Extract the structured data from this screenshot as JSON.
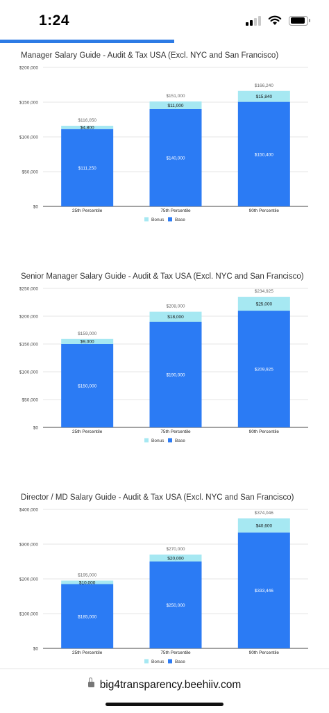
{
  "status": {
    "time": "1:24"
  },
  "reading_progress": 0.53,
  "browser": {
    "url": "big4transparency.beehiiv.com"
  },
  "colors": {
    "bonus": "#a6e8f2",
    "base": "#2b7bf4",
    "grid": "#dddddd",
    "axis": "#444444",
    "progress": "#2d7be5"
  },
  "chart_data": [
    {
      "type": "bar",
      "stacked": true,
      "title": "Manager Salary Guide - Audit & Tax USA (Excl. NYC and San Francisco)",
      "categories": [
        "25th Percentile",
        "75th Percentile",
        "90th Percentile"
      ],
      "series": [
        {
          "name": "Base",
          "values": [
            111250,
            140000,
            150400
          ],
          "labels": [
            "$111,250",
            "$140,000",
            "$150,400"
          ]
        },
        {
          "name": "Bonus",
          "values": [
            4800,
            11000,
            15840
          ],
          "labels": [
            "$4,800",
            "$11,000",
            "$15,840"
          ]
        }
      ],
      "totals": [
        "$116,050",
        "$151,000",
        "$166,240"
      ],
      "ylim": [
        0,
        200000
      ],
      "yticks": [
        "$0",
        "$50,000",
        "$100,000",
        "$150,000",
        "$200,000"
      ],
      "legend": [
        "Bonus",
        "Base"
      ],
      "legend_position": "bottom",
      "grid": true
    },
    {
      "type": "bar",
      "stacked": true,
      "title": "Senior Manager Salary Guide - Audit & Tax USA (Excl. NYC and San Francisco)",
      "categories": [
        "25th Percentile",
        "75th Percentile",
        "90th Percentile"
      ],
      "series": [
        {
          "name": "Base",
          "values": [
            150000,
            190000,
            209925
          ],
          "labels": [
            "$150,000",
            "$190,000",
            "$209,925"
          ]
        },
        {
          "name": "Bonus",
          "values": [
            9000,
            18000,
            25000
          ],
          "labels": [
            "$9,000",
            "$18,000",
            "$25,000"
          ]
        }
      ],
      "totals": [
        "$159,000",
        "$208,000",
        "$234,925"
      ],
      "ylim": [
        0,
        250000
      ],
      "yticks": [
        "$0",
        "$50,000",
        "$100,000",
        "$150,000",
        "$200,000",
        "$250,000"
      ],
      "legend": [
        "Bonus",
        "Base"
      ],
      "legend_position": "bottom",
      "grid": true
    },
    {
      "type": "bar",
      "stacked": true,
      "title": "Director / MD Salary Guide - Audit & Tax USA (Excl. NYC and San Francisco)",
      "categories": [
        "25th Percentile",
        "75th Percentile",
        "90th Percentile"
      ],
      "series": [
        {
          "name": "Base",
          "values": [
            185000,
            250000,
            333446
          ],
          "labels": [
            "$185,000",
            "$250,000",
            "$333,446"
          ]
        },
        {
          "name": "Bonus",
          "values": [
            10000,
            20000,
            40600
          ],
          "labels": [
            "$10,000",
            "$20,000",
            "$40,600"
          ]
        }
      ],
      "totals": [
        "$195,000",
        "$270,000",
        "$374,046"
      ],
      "ylim": [
        0,
        400000
      ],
      "yticks": [
        "$0",
        "$100,000",
        "$200,000",
        "$300,000",
        "$400,000"
      ],
      "legend": [
        "Bonus",
        "Base"
      ],
      "legend_position": "bottom",
      "grid": true
    }
  ]
}
